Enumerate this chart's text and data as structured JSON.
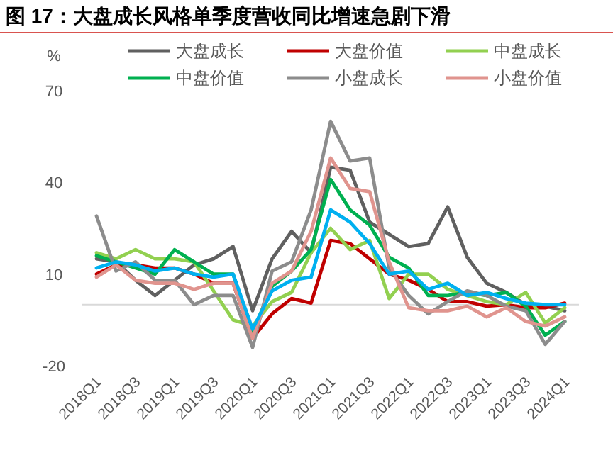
{
  "chart_data": {
    "type": "line",
    "title": "图 17：大盘成长风格单季度营收同比增速急剧下滑",
    "ylabel": "%",
    "categories": [
      "2018Q1",
      null,
      "2018Q3",
      null,
      "2019Q1",
      null,
      "2019Q3",
      null,
      "2020Q1",
      null,
      "2020Q3",
      null,
      "2021Q1",
      null,
      "2021Q3",
      null,
      "2022Q1",
      null,
      "2022Q3",
      null,
      "2023Q1",
      null,
      "2023Q3",
      null,
      "2024Q1"
    ],
    "ylim": [
      -20,
      70
    ],
    "yticks": [
      -20,
      10,
      40,
      70
    ],
    "grid": false,
    "legend": "top",
    "marker": "none",
    "line_style": "solid",
    "series": [
      {
        "name": "大盘成长",
        "color": "#606060",
        "values": [
          15,
          14,
          8,
          3,
          8,
          13,
          15,
          19,
          -2,
          15,
          24,
          17,
          45,
          44,
          27,
          23,
          19,
          20,
          32,
          15.5,
          7,
          4,
          0,
          -0.5,
          -2
        ]
      },
      {
        "name": "大盘价值",
        "color": "#c00000",
        "values": [
          10,
          13,
          13,
          12,
          12,
          10,
          7,
          7,
          -11,
          -3,
          2,
          0.5,
          21,
          20,
          15,
          10,
          8,
          5,
          1,
          1,
          -0.5,
          0,
          -1,
          -1,
          0.5
        ]
      },
      {
        "name": "中盘成长",
        "color": "#92d050",
        "values": [
          17,
          15,
          18,
          15,
          15,
          14,
          4.5,
          -5,
          -7,
          1,
          4,
          17,
          25,
          18,
          21,
          2,
          10,
          10,
          5,
          3,
          1,
          0,
          4,
          -6,
          -1
        ]
      },
      {
        "name": "中盘价值",
        "color": "#00b050",
        "values": [
          16,
          14,
          12,
          10,
          18,
          14,
          10,
          10,
          -9,
          6,
          11,
          18,
          41,
          31,
          26,
          15.5,
          12,
          3,
          3,
          4,
          3,
          4,
          -0.5,
          -10,
          -5.5
        ]
      },
      {
        "name": "小盘成长",
        "color": "#8c8c8c",
        "values": [
          29,
          11,
          14,
          8,
          8,
          0,
          3,
          3,
          -14,
          11,
          14,
          31,
          60,
          47,
          48,
          12,
          3,
          -3,
          1,
          4.5,
          3,
          -0.5,
          -2,
          -13,
          -5.5
        ]
      },
      {
        "name": "小盘价值",
        "color": "#e0948e",
        "values": [
          9,
          13,
          8,
          7,
          7,
          5,
          7,
          7,
          -11,
          7,
          11,
          24,
          48,
          38,
          37,
          14,
          -1,
          -2,
          -2,
          -0.5,
          -4,
          -1,
          -5.5,
          -7,
          -4
        ]
      },
      {
        "color": "#00b0f0",
        "values": [
          12,
          14,
          13,
          11,
          12,
          10,
          9,
          10,
          -8,
          4.5,
          8,
          9,
          31,
          27,
          20,
          10,
          11,
          5,
          7,
          3,
          4,
          2,
          0.5,
          0,
          0
        ]
      }
    ]
  }
}
